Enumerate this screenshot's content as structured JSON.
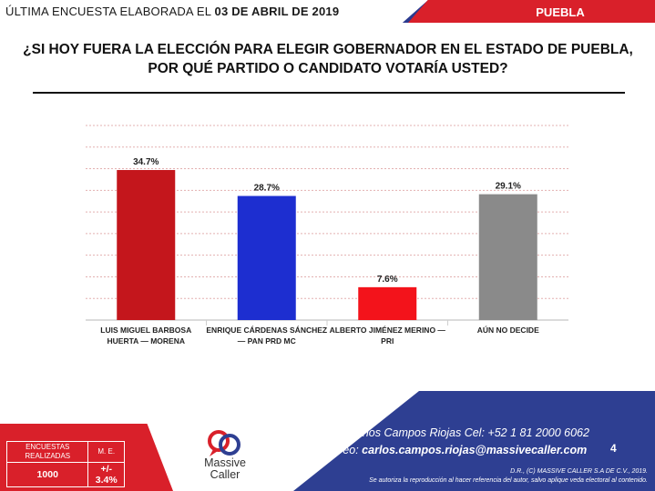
{
  "header": {
    "survey_label": "ÚLTIMA ENCUESTA ELABORADA EL",
    "survey_date": "03 DE ABRIL DE 2019",
    "region": "PUEBLA"
  },
  "question": {
    "line1": "¿SI HOY FUERA LA ELECCIÓN PARA ELEGIR GOBERNADOR EN EL ESTADO DE PUEBLA,",
    "line2": "POR QUÉ PARTIDO O CANDIDATO VOTARÍA USTED?"
  },
  "chart_data": {
    "type": "bar",
    "categories": [
      [
        "LUIS MIGUEL BARBOSA",
        "HUERTA — MORENA"
      ],
      [
        "ENRIQUE CÁRDENAS SÁNCHEZ",
        "— PAN PRD MC"
      ],
      [
        "ALBERTO JIMÉNEZ MERINO —",
        "PRI"
      ],
      [
        "AÚN NO DECIDE"
      ]
    ],
    "values": [
      34.7,
      28.7,
      7.6,
      29.1
    ],
    "data_labels": [
      "34.7%",
      "28.7%",
      "7.6%",
      "29.1%"
    ],
    "colors": [
      "#c4161c",
      "#1d2ed0",
      "#f3131b",
      "#8a8a8a"
    ],
    "ylim": [
      0,
      45
    ],
    "grid": true,
    "grid_style": "dashed"
  },
  "stats": {
    "surveys_header": "ENCUESTAS REALIZADAS",
    "me_header": "M. E.",
    "surveys_value": "1000",
    "me_value": "+/- 3.4%"
  },
  "logo": {
    "name_line1": "Massive",
    "name_line2": "Caller"
  },
  "contact": {
    "line1": "José Carlos Campos Riojas Cel: +52 1 81 2000 6062",
    "email_label": "Correo:",
    "email": "carlos.campos.riojas@massivecaller.com"
  },
  "page_number": "4",
  "legal": {
    "line1": "D.R., (C) MASSIVE CALLER S.A DE C.V., 2019.",
    "line2": "Se autoriza la reproducción al hacer referencia del autor, salvo aplique veda electoral al contenido."
  }
}
